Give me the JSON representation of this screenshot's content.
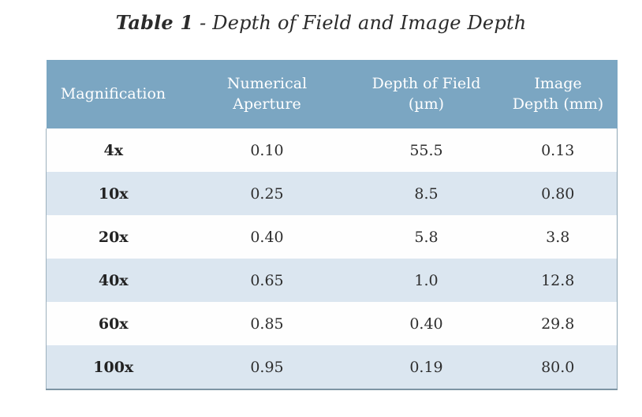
{
  "title": {
    "prefix": "Table 1",
    "rest": " - Depth of Field and Image Depth"
  },
  "chart_data": {
    "type": "table",
    "title": "Table 1 - Depth of Field and Image Depth",
    "columns": [
      "Magnification",
      "Numerical Aperture",
      "Depth of Field (µm)",
      "Image Depth (mm)"
    ],
    "rows": [
      [
        "4x",
        "0.10",
        "55.5",
        "0.13"
      ],
      [
        "10x",
        "0.25",
        "8.5",
        "0.80"
      ],
      [
        "20x",
        "0.40",
        "5.8",
        "3.8"
      ],
      [
        "40x",
        "0.65",
        "1.0",
        "12.8"
      ],
      [
        "60x",
        "0.85",
        "0.40",
        "29.8"
      ],
      [
        "100x",
        "0.95",
        "0.19",
        "80.0"
      ]
    ],
    "layout": {
      "header_position": "top",
      "row_striping": "alternating",
      "text_alignment": "center"
    }
  },
  "colors": {
    "header_background": "#7ba6c2",
    "header_text": "#ffffff",
    "row_white": "#fefefe",
    "row_alt_blue": "#dbe6f0",
    "body_text": "#2e2e2e",
    "bottom_border": "#7e95a4",
    "side_border": "#9db0bd",
    "title_text": "#2b2b2b"
  }
}
